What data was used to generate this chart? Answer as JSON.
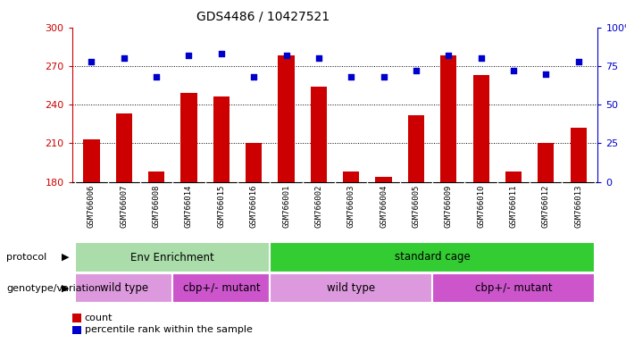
{
  "title": "GDS4486 / 10427521",
  "samples": [
    "GSM766006",
    "GSM766007",
    "GSM766008",
    "GSM766014",
    "GSM766015",
    "GSM766016",
    "GSM766001",
    "GSM766002",
    "GSM766003",
    "GSM766004",
    "GSM766005",
    "GSM766009",
    "GSM766010",
    "GSM766011",
    "GSM766012",
    "GSM766013"
  ],
  "counts": [
    213,
    233,
    188,
    249,
    246,
    210,
    278,
    254,
    188,
    184,
    232,
    278,
    263,
    188,
    210,
    222
  ],
  "percentiles": [
    78,
    80,
    68,
    82,
    83,
    68,
    82,
    80,
    68,
    68,
    72,
    82,
    80,
    72,
    70,
    78
  ],
  "ylim_left": [
    180,
    300
  ],
  "ylim_right": [
    0,
    100
  ],
  "yticks_left": [
    180,
    210,
    240,
    270,
    300
  ],
  "yticks_right": [
    0,
    25,
    50,
    75,
    100
  ],
  "bar_color": "#cc0000",
  "dot_color": "#0000cc",
  "label_bg_color": "#d0d0d0",
  "protocol_groups": [
    {
      "label": "Env Enrichment",
      "start": 0,
      "end": 6,
      "color": "#aaddaa"
    },
    {
      "label": "standard cage",
      "start": 6,
      "end": 16,
      "color": "#33cc33"
    }
  ],
  "genotype_groups": [
    {
      "label": "wild type",
      "start": 0,
      "end": 3,
      "color": "#dd99dd"
    },
    {
      "label": "cbp+/- mutant",
      "start": 3,
      "end": 6,
      "color": "#cc55cc"
    },
    {
      "label": "wild type",
      "start": 6,
      "end": 11,
      "color": "#dd99dd"
    },
    {
      "label": "cbp+/- mutant",
      "start": 11,
      "end": 16,
      "color": "#cc55cc"
    }
  ],
  "legend_count_label": "count",
  "legend_pct_label": "percentile rank within the sample",
  "protocol_label": "protocol",
  "genotype_label": "genotype/variation",
  "n_samples": 16
}
